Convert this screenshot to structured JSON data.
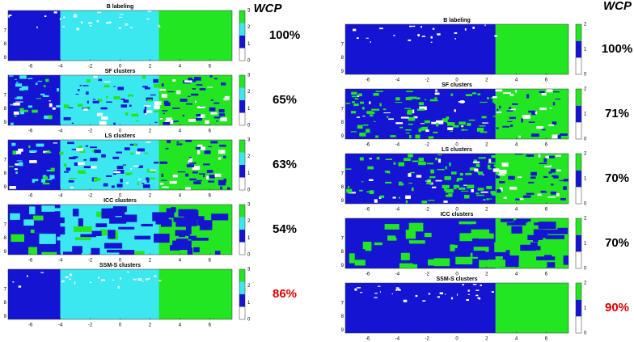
{
  "wcp_label": "WCP",
  "x_ticks": [
    -6,
    -4,
    -2,
    0,
    2,
    4,
    6
  ],
  "y_ticks": [
    7,
    8,
    9
  ],
  "columns": [
    {
      "colorbar_ticks": [
        0,
        1,
        2,
        3
      ],
      "panels": [
        {
          "title": "B labeling",
          "wcp": "100%",
          "wcp_color": "#000000"
        },
        {
          "title": "SF clusters",
          "wcp": "65%",
          "wcp_color": "#000000"
        },
        {
          "title": "LS clusters",
          "wcp": "63%",
          "wcp_color": "#000000"
        },
        {
          "title": "ICC clusters",
          "wcp": "54%",
          "wcp_color": "#000000"
        },
        {
          "title": "SSM-S clusters",
          "wcp": "86%",
          "wcp_color": "#e00000"
        }
      ]
    },
    {
      "colorbar_ticks": [
        0,
        1,
        2
      ],
      "panels": [
        {
          "title": "B labeling",
          "wcp": "100%",
          "wcp_color": "#000000"
        },
        {
          "title": "SF clusters",
          "wcp": "71%",
          "wcp_color": "#000000"
        },
        {
          "title": "LS clusters",
          "wcp": "70%",
          "wcp_color": "#000000"
        },
        {
          "title": "ICC clusters",
          "wcp": "70%",
          "wcp_color": "#000000"
        },
        {
          "title": "SSM-S clusters",
          "wcp": "90%",
          "wcp_color": "#e00000"
        }
      ]
    }
  ]
}
